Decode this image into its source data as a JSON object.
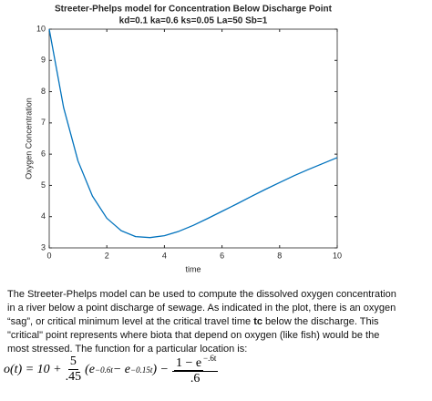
{
  "chart_data": {
    "type": "line",
    "title": "Streeter-Phelps model for Concentration Below Discharge Point",
    "subtitle": "kd=0.1 ka=0.6 ks=0.05 La=50 Sb=1",
    "x_label": "time",
    "y_label": "Oxygen Concentration",
    "x": [
      0,
      0.5,
      1,
      1.5,
      2,
      2.5,
      3,
      3.5,
      4,
      4.5,
      5,
      5.5,
      6,
      6.5,
      7,
      7.5,
      8,
      8.5,
      9,
      9.5,
      10
    ],
    "series": [
      {
        "color": "#0072bd",
        "values": [
          10,
          7.49,
          5.78,
          4.66,
          3.95,
          3.55,
          3.36,
          3.33,
          3.39,
          3.53,
          3.72,
          3.94,
          4.17,
          4.4,
          4.64,
          4.87,
          5.09,
          5.31,
          5.51,
          5.7,
          5.89
        ]
      }
    ],
    "xlim": [
      0,
      10
    ],
    "xticks": [
      0,
      2,
      4,
      6,
      8,
      10
    ],
    "ylim": [
      3,
      10
    ],
    "yticks": [
      3,
      4,
      5,
      6,
      7,
      8,
      9,
      10
    ],
    "grid": false
  },
  "description": {
    "lines": [
      "The Streeter-Phelps model can be used to compute the dissolved oxygen concentration",
      "in a river below a point discharge of sewage. As indicated in the plot, there is an oxygen"
    ],
    "line3": [
      "“sag”, or critical minimum level at the critical travel time ",
      "tc",
      " below the discharge. This"
    ],
    "lines_end": [
      "\"critical\" point represents where biota that depend on oxygen (like fish) would be the",
      "most stressed. The function for a particular location is:"
    ]
  },
  "formula": {
    "lhs": "o(t) = 10 +",
    "f1_num": "5",
    "f1_den": ".45",
    "open": "(e",
    "exp1": "−0.6t",
    "mid": " − e",
    "exp2": "−0.15t",
    "close": ") −",
    "f2_num": "1 − e",
    "f2_exp": "−.6t",
    "f2_den": ".6"
  }
}
